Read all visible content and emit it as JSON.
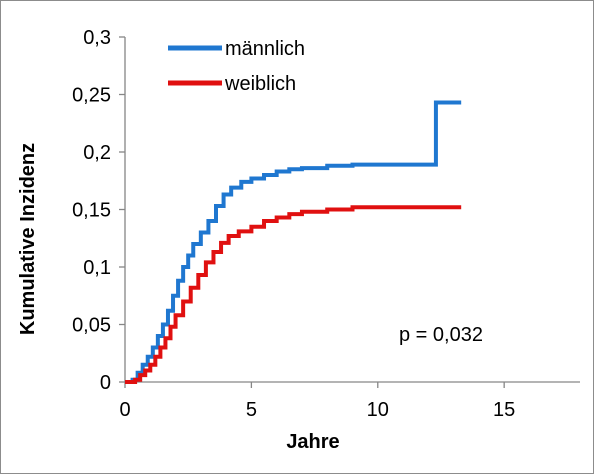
{
  "chart_data": {
    "type": "line",
    "title": "",
    "xlabel": "Jahre",
    "ylabel": "Kumulative Inzidenz",
    "xlim": [
      0,
      18
    ],
    "ylim": [
      0,
      0.3
    ],
    "x_ticks": [
      0,
      5,
      10,
      15
    ],
    "x_tick_labels": [
      "0",
      "5",
      "10",
      "15"
    ],
    "y_ticks": [
      0,
      0.05,
      0.1,
      0.15,
      0.2,
      0.25,
      0.3
    ],
    "y_tick_labels": [
      "0",
      "0,05",
      "0,1",
      "0,15",
      "0,2",
      "0,25",
      "0,3"
    ],
    "grid": false,
    "legend_position": "top-left",
    "annotation": "p = 0,032",
    "series": [
      {
        "name": "männlich",
        "color": "#1f77d0",
        "step": true,
        "points": [
          [
            0,
            0
          ],
          [
            0.3,
            0.002
          ],
          [
            0.5,
            0.008
          ],
          [
            0.7,
            0.015
          ],
          [
            0.9,
            0.022
          ],
          [
            1.1,
            0.03
          ],
          [
            1.3,
            0.04
          ],
          [
            1.5,
            0.05
          ],
          [
            1.7,
            0.062
          ],
          [
            1.9,
            0.075
          ],
          [
            2.1,
            0.088
          ],
          [
            2.3,
            0.1
          ],
          [
            2.5,
            0.11
          ],
          [
            2.7,
            0.12
          ],
          [
            3.0,
            0.13
          ],
          [
            3.3,
            0.14
          ],
          [
            3.6,
            0.153
          ],
          [
            3.9,
            0.163
          ],
          [
            4.2,
            0.169
          ],
          [
            4.6,
            0.174
          ],
          [
            5.0,
            0.177
          ],
          [
            5.5,
            0.18
          ],
          [
            6.0,
            0.183
          ],
          [
            6.5,
            0.185
          ],
          [
            7.0,
            0.186
          ],
          [
            8.0,
            0.188
          ],
          [
            9.0,
            0.189
          ],
          [
            12.3,
            0.189
          ],
          [
            12.3,
            0.243
          ],
          [
            13.3,
            0.243
          ]
        ]
      },
      {
        "name": "weiblich",
        "color": "#e01010",
        "step": true,
        "points": [
          [
            0,
            0
          ],
          [
            0.4,
            0.002
          ],
          [
            0.6,
            0.006
          ],
          [
            0.8,
            0.01
          ],
          [
            1.0,
            0.015
          ],
          [
            1.2,
            0.022
          ],
          [
            1.4,
            0.03
          ],
          [
            1.6,
            0.038
          ],
          [
            1.8,
            0.048
          ],
          [
            2.0,
            0.058
          ],
          [
            2.3,
            0.07
          ],
          [
            2.6,
            0.082
          ],
          [
            2.9,
            0.093
          ],
          [
            3.2,
            0.104
          ],
          [
            3.5,
            0.113
          ],
          [
            3.8,
            0.121
          ],
          [
            4.1,
            0.127
          ],
          [
            4.5,
            0.131
          ],
          [
            5.0,
            0.135
          ],
          [
            5.5,
            0.14
          ],
          [
            6.0,
            0.143
          ],
          [
            6.5,
            0.146
          ],
          [
            7.0,
            0.148
          ],
          [
            8.0,
            0.15
          ],
          [
            9.0,
            0.152
          ],
          [
            13.3,
            0.152
          ]
        ]
      }
    ]
  }
}
